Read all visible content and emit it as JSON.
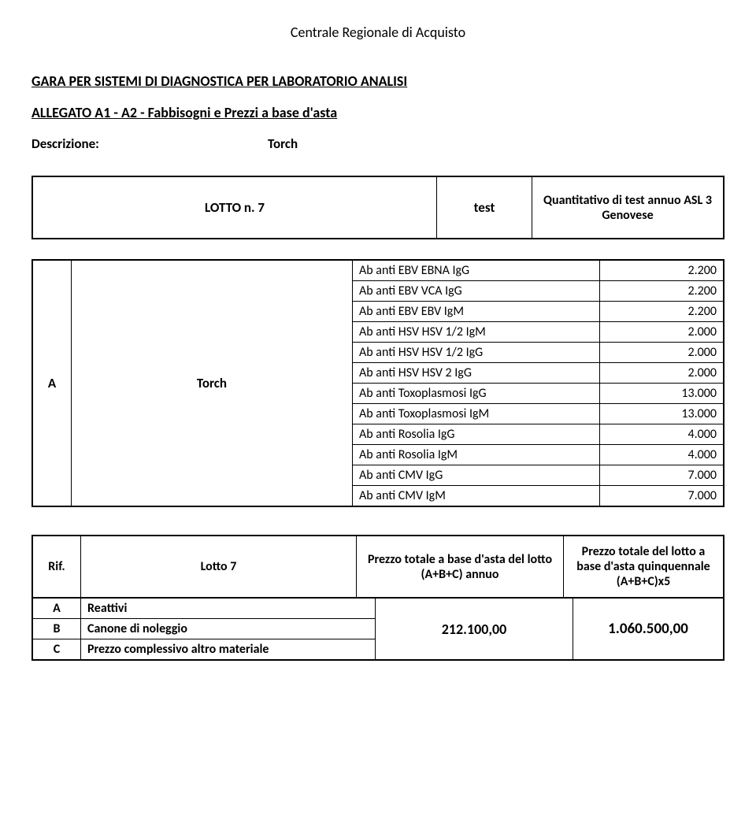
{
  "header": "Centrale Regionale di Acquisto",
  "title": "GARA PER SISTEMI DI DIAGNOSTICA PER LABORATORIO ANALISI",
  "subtitle": "ALLEGATO A1 - A2 - Fabbisogni e Prezzi a base d'asta",
  "description": {
    "label": "Descrizione:",
    "value": "Torch"
  },
  "lotto_box": {
    "left": "LOTTO n. 7",
    "mid": "test",
    "right": "Quantitativo  di test annuo  ASL 3 Genovese"
  },
  "data": {
    "code": "A",
    "label": "Torch",
    "rows": [
      {
        "name": "Ab anti EBV  EBNA IgG",
        "value": "2.200"
      },
      {
        "name": "Ab anti EBV  VCA   IgG",
        "value": "2.200"
      },
      {
        "name": "Ab anti EBV  EBV   IgM",
        "value": "2.200"
      },
      {
        "name": "Ab anti HSV  HSV 1/2  IgM",
        "value": "2.000"
      },
      {
        "name": "Ab anti HSV  HSV 1/2  IgG",
        "value": "2.000"
      },
      {
        "name": "Ab anti HSV  HSV   2  IgG",
        "value": "2.000"
      },
      {
        "name": "Ab anti Toxoplasmosi IgG",
        "value": "13.000"
      },
      {
        "name": "Ab anti Toxoplasmosi IgM",
        "value": "13.000"
      },
      {
        "name": "Ab anti Rosolia IgG",
        "value": "4.000"
      },
      {
        "name": "Ab anti Rosolia IgM",
        "value": "4.000"
      },
      {
        "name": "Ab anti CMV IgG",
        "value": "7.000"
      },
      {
        "name": "Ab anti CMV IgM",
        "value": "7.000"
      }
    ]
  },
  "price": {
    "headers": {
      "rif": "Rif.",
      "lotto": "Lotto 7",
      "annuo": "Prezzo totale a base d'asta del lotto (A+B+C) annuo",
      "totale": "Prezzo totale del lotto  a base d'asta quinquennale (A+B+C)x5"
    },
    "left_rows": [
      {
        "code": "A",
        "label": "Reattivi"
      },
      {
        "code": "B",
        "label": "Canone di noleggio"
      },
      {
        "code": "C",
        "label": "Prezzo complessivo altro materiale"
      }
    ],
    "annuo_value": "212.100,00",
    "totale_value": "1.060.500,00"
  },
  "style": {
    "border_color": "#000000",
    "background": "#ffffff",
    "font_family": "Calibri, Arial, sans-serif"
  }
}
